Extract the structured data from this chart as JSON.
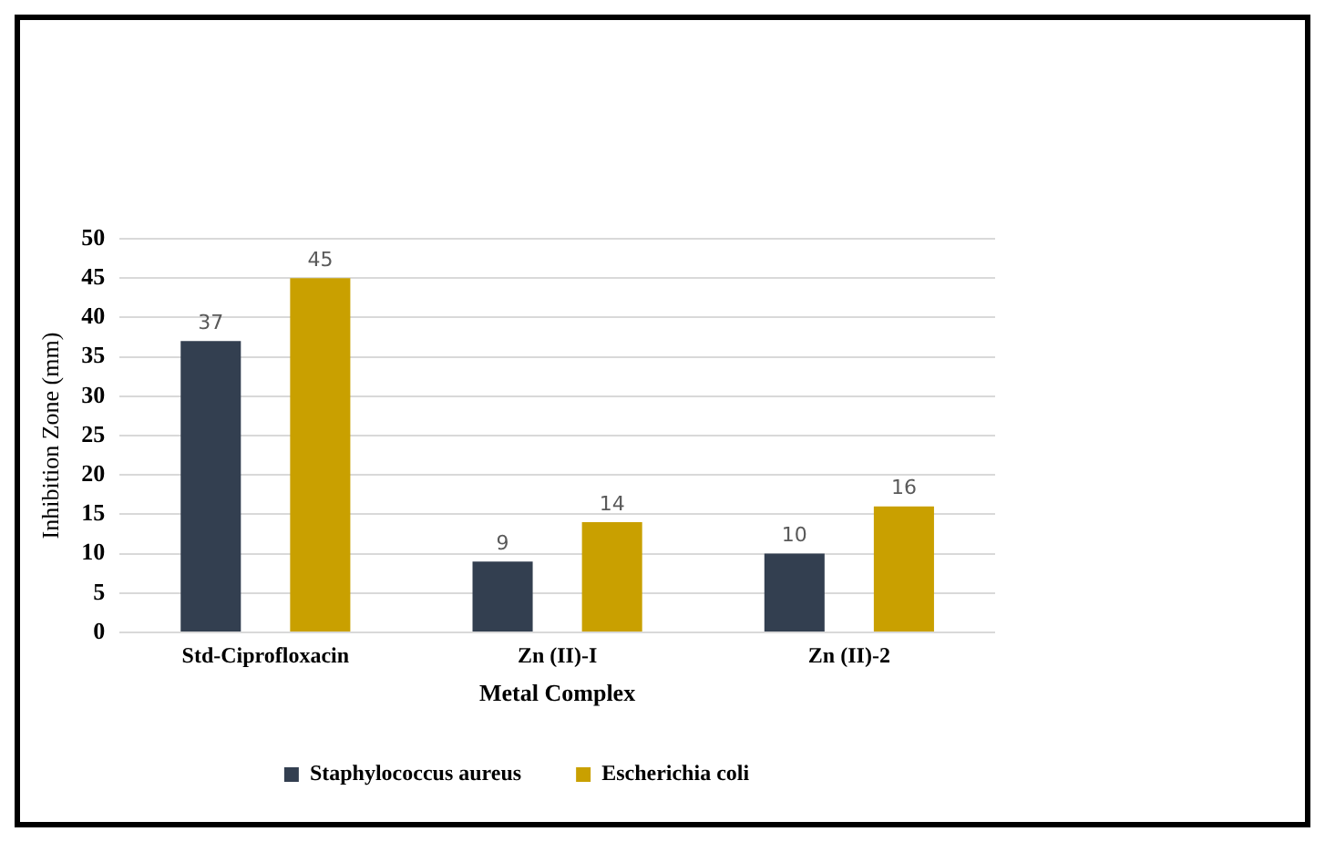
{
  "chart_data": {
    "type": "bar",
    "xlabel": "Metal Complex",
    "ylabel": "Inhibition Zone (mm)",
    "categories": [
      "Std-Ciprofloxacin",
      "Zn (II)-I",
      "Zn (II)-2"
    ],
    "series": [
      {
        "name": "Staphylococcus aureus",
        "color": "#333f50",
        "values": [
          37,
          9,
          10
        ]
      },
      {
        "name": "Escherichia coli",
        "color": "#c9a000",
        "values": [
          45,
          14,
          16
        ]
      }
    ],
    "ylim": [
      0,
      50
    ],
    "yticks": [
      0,
      5,
      10,
      15,
      20,
      25,
      30,
      35,
      40,
      45,
      50
    ],
    "grid": "y",
    "legend": "bottom",
    "data_labels": true
  }
}
